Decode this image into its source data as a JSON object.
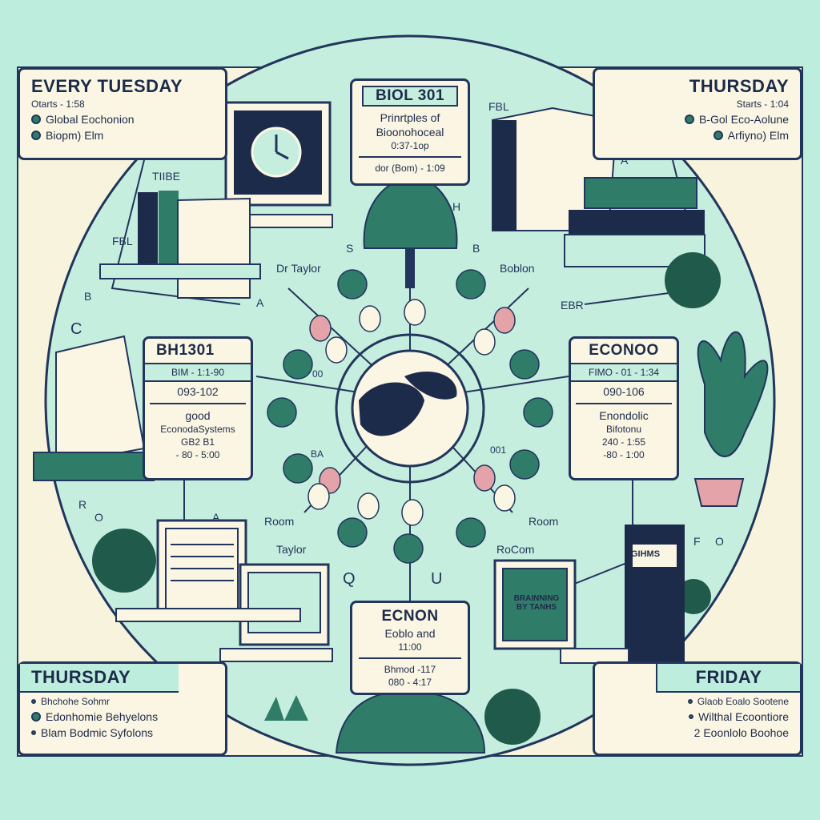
{
  "corners": {
    "top_left": {
      "title": "EVERY TUESDAY",
      "subtitle": "Otarts - 1:58",
      "items": [
        "Global Eochonion",
        "Biopm) Elm"
      ]
    },
    "top_right": {
      "title": "THURSDAY",
      "subtitle": "Starts - 1:04",
      "items": [
        "B-Gol Eco-Aolune",
        "Arfiyno) Elm"
      ]
    },
    "bottom_left": {
      "title": "THURSDAY",
      "items": [
        "Bhchohe Sohmr",
        "Edonhomie Behyelons",
        "Blam Bodmic Syfolons"
      ]
    },
    "bottom_right": {
      "title": "FRIDAY",
      "items": [
        "Glaob Eoalo Sootene",
        "Wilthal Ecoontiore",
        "2 Eoonlolo Boohoe"
      ]
    }
  },
  "courses": {
    "top": {
      "code": "BIOL 301",
      "line1": "Prinrtples of",
      "line2": "Bioonohoceal",
      "line3": "0:37-1op",
      "line4": "dor (Bom) - 1:09"
    },
    "left": {
      "code": "BH1301",
      "line1": "BIM - 1:1-90",
      "line2": "093-102",
      "line3": "good",
      "line4": "EconodaSystems",
      "line5": "GB2 B1",
      "line6": "- 80 - 5:00"
    },
    "right": {
      "code": "ECONOO",
      "line1": "FIMO - 01 - 1:34",
      "line2": "090-106",
      "line3": "Enondolic",
      "line4": "Bifotonu",
      "line5": "240 - 1:55",
      "line6": "-80 - 1:00"
    },
    "bottom": {
      "code": "ECNON",
      "line1": "Eoblo and",
      "line2": "11:00",
      "line3": "Bhmod -117",
      "line4": "080 - 4:17"
    }
  },
  "labels": {
    "dr_taylor": "Dr Taylor",
    "taylor": "Taylor",
    "room_left": "Room",
    "room_right": "Room",
    "rocom": "RoCom",
    "boblon": "Boblon",
    "ebr": "EBR",
    "fbl_left": "FBL",
    "fbl_right": "FBL",
    "tibe": "TIIBE",
    "letter_a1": "A",
    "letter_a2": "A",
    "letter_a3": "A",
    "letter_b1": "B",
    "letter_b2": "B",
    "letter_c": "C",
    "letter_h": "H",
    "letter_s": "S",
    "letter_q": "Q",
    "letter_u": "U",
    "letter_f": "F",
    "letter_o1": "O",
    "letter_o2": "O",
    "letter_r": "R",
    "ring_ba": "BA",
    "ring_00": "00",
    "ring_001": "001"
  },
  "screens": {
    "bottom_right": "BRAINNING BY TANHS",
    "book_spine": "GIHMS"
  },
  "colors": {
    "background": "#bdeedd",
    "paper": "#fbf6e3",
    "ink": "#22355c",
    "leaf": "#2f7d68",
    "leaf_dark": "#1f5a4a",
    "pink": "#e4a3a8"
  }
}
